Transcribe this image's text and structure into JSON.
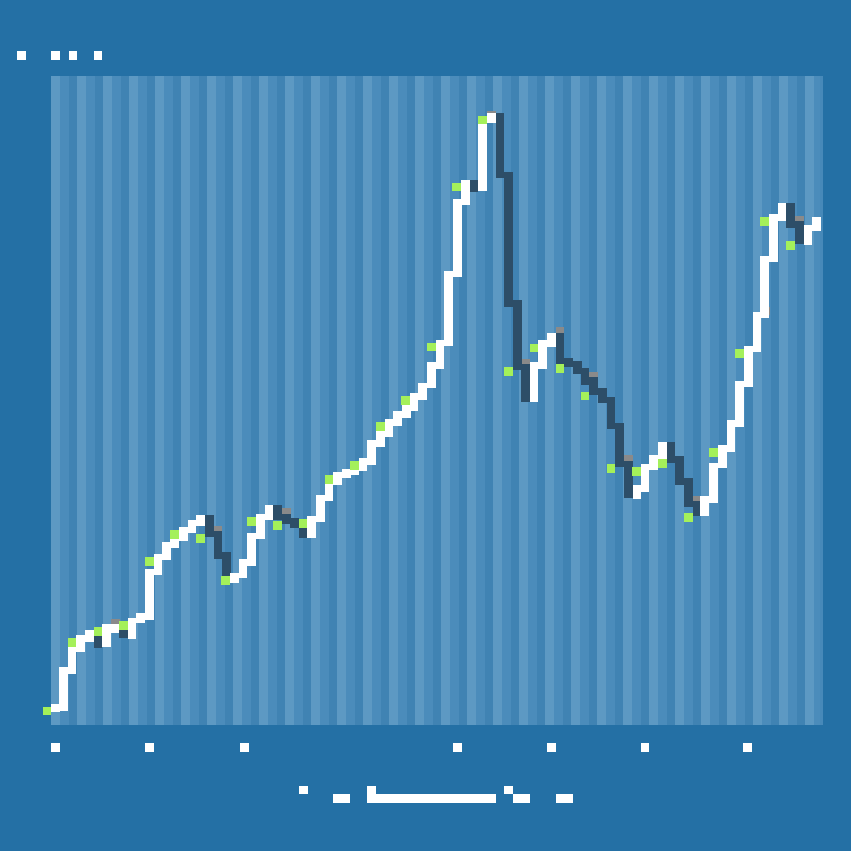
{
  "colors": {
    "page_background": "#2470a5",
    "plot_background": "#4b8cbb",
    "stripe_light": "#5f9ac4",
    "stripe_dark": "#3f82b2",
    "candle_up": "#ffffff",
    "candle_down": "#2d4e68",
    "accent_green": "#a4f05a",
    "accent_gray": "#8a8a8a",
    "text": "#ffffff"
  },
  "chart_data": {
    "type": "line",
    "title": "",
    "xlabel": "",
    "ylabel": "",
    "grid": true,
    "legend": "none",
    "x": [
      0,
      1,
      2,
      3,
      4,
      5,
      6,
      7,
      8,
      9,
      10,
      11,
      12,
      13,
      14,
      15,
      16,
      17,
      18,
      19,
      20,
      21,
      22,
      23,
      24,
      25,
      26,
      27,
      28,
      29,
      30,
      31,
      32,
      33,
      34,
      35,
      36,
      37,
      38,
      39,
      40,
      41,
      42,
      43,
      44,
      45,
      46,
      47,
      48,
      49,
      50,
      51,
      52,
      53,
      54,
      55,
      56,
      57,
      58,
      59,
      60,
      61,
      62,
      63,
      64,
      65,
      66,
      67,
      68,
      69,
      70,
      71,
      72,
      73,
      74,
      75,
      76,
      77,
      78,
      79,
      80,
      81,
      82,
      83,
      84,
      85,
      86,
      87,
      88,
      89
    ],
    "series": [
      {
        "values": [
          0.6,
          4.3,
          6.5,
          7.5,
          8.1,
          6.9,
          8.6,
          8.6,
          7.8,
          9.3,
          9.7,
          14.2,
          15.7,
          16.9,
          17.6,
          18.4,
          19.1,
          19.6,
          18.0,
          15.8,
          13.4,
          13.8,
          15.1,
          17.8,
          19.7,
          20.6,
          19.7,
          19.3,
          18.9,
          17.9,
          19.5,
          21.6,
          23.3,
          23.9,
          24.2,
          24.6,
          25.3,
          27.1,
          28.1,
          29.2,
          30.0,
          30.7,
          31.8,
          32.9,
          34.9,
          37.2,
          44.1,
          51.4,
          53.3,
          52.7,
          59.6,
          60.0,
          54.1,
          41.2,
          34.8,
          31.6,
          34.9,
          37.1,
          37.9,
          35.4,
          35.1,
          34.4,
          33.4,
          32.3,
          31.4,
          28.8,
          25.0,
          21.9,
          22.6,
          24.7,
          25.6,
          26.9,
          25.5,
          23.3,
          21.0,
          20.1,
          21.5,
          24.9,
          26.6,
          29.1,
          33.1,
          36.6,
          40.0,
          45.6,
          49.8,
          51.0,
          49.1,
          47.4,
          48.8,
          49.5
        ]
      }
    ],
    "ylim": [
      0,
      62
    ]
  }
}
